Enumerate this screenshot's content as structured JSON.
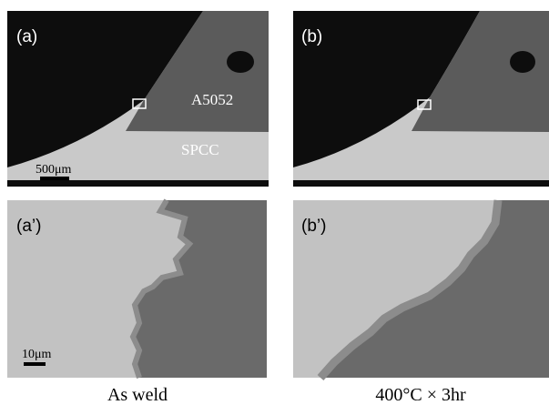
{
  "panels": [
    {
      "label": "(a)",
      "annotations": [
        "A5052",
        "SPCC"
      ],
      "scale_bar": "500μm"
    },
    {
      "label": "(b)"
    },
    {
      "label": "(a’)",
      "scale_bar": "10μm"
    },
    {
      "label": "(b’)"
    }
  ],
  "captions": [
    "As weld",
    "400°C × 3hr"
  ]
}
